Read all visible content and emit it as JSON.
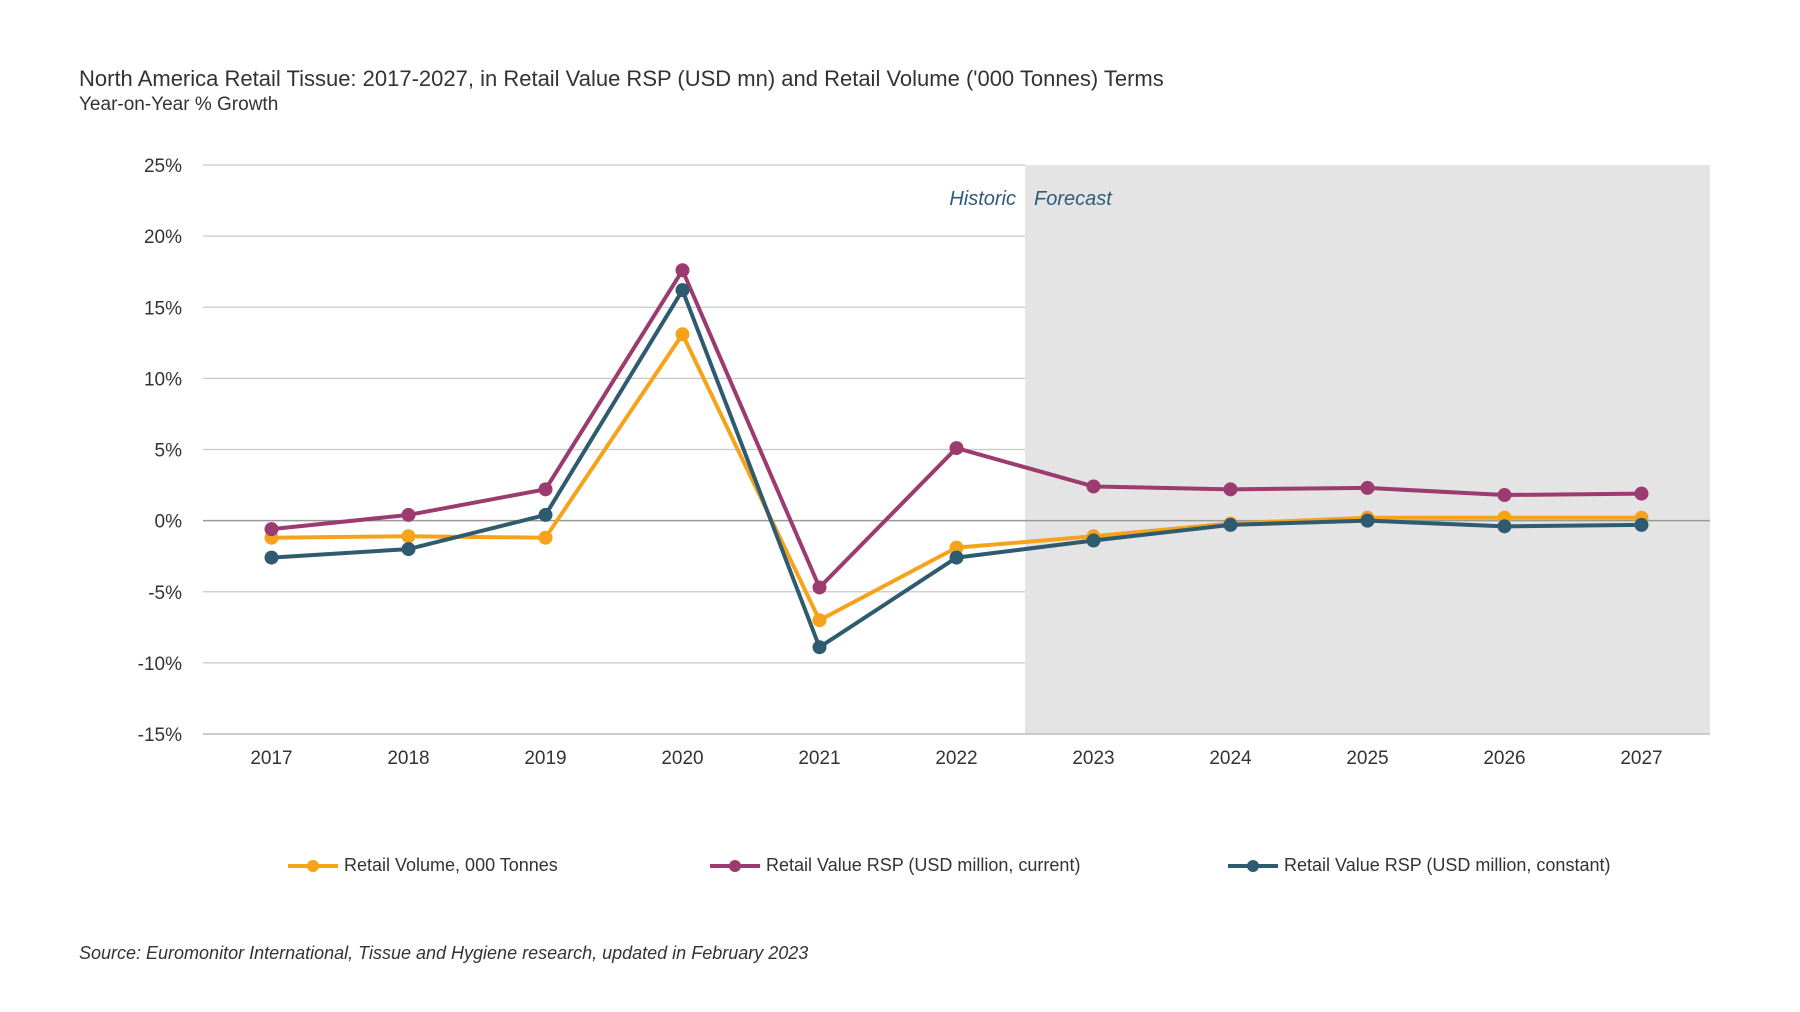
{
  "chart_data": {
    "type": "line",
    "title": "North America Retail Tissue: 2017-2027, in Retail Value RSP (USD mn) and Retail Volume ('000 Tonnes) Terms",
    "subtitle": "Year-on-Year % Growth",
    "categories": [
      "2017",
      "2018",
      "2019",
      "2020",
      "2021",
      "2022",
      "2023",
      "2024",
      "2025",
      "2026",
      "2027"
    ],
    "series": [
      {
        "name": "Retail Volume, 000 Tonnes",
        "color": "#f5a31a",
        "values": [
          -1.2,
          -1.1,
          -1.2,
          13.1,
          -7.0,
          -1.9,
          -1.1,
          -0.2,
          0.2,
          0.2,
          0.2
        ]
      },
      {
        "name": "Retail Value RSP (USD million, current)",
        "color": "#9b3b6f",
        "values": [
          -0.6,
          0.4,
          2.2,
          17.6,
          -4.7,
          5.1,
          2.4,
          2.2,
          2.3,
          1.8,
          1.9
        ]
      },
      {
        "name": "Retail Value RSP (USD million, constant)",
        "color": "#2e5b70",
        "values": [
          -2.6,
          -2.0,
          0.4,
          16.2,
          -8.9,
          -2.6,
          -1.4,
          -0.3,
          0.0,
          -0.4,
          -0.3
        ]
      }
    ],
    "y_ticks": [
      "25%",
      "20%",
      "15%",
      "10%",
      "5%",
      "0%",
      "-5%",
      "-10%",
      "-15%"
    ],
    "y_tick_values": [
      25,
      20,
      15,
      10,
      5,
      0,
      -5,
      -10,
      -15
    ],
    "ylim": [
      -15,
      25
    ],
    "grid": true,
    "legend_position": "bottom",
    "forecast_start_after": "2022",
    "historic_label": "Historic",
    "forecast_label": "Forecast",
    "forecast_shade_color": "#e4e4e4",
    "source": "Source: Euromonitor International, Tissue and Hygiene research, updated in February 2023"
  }
}
